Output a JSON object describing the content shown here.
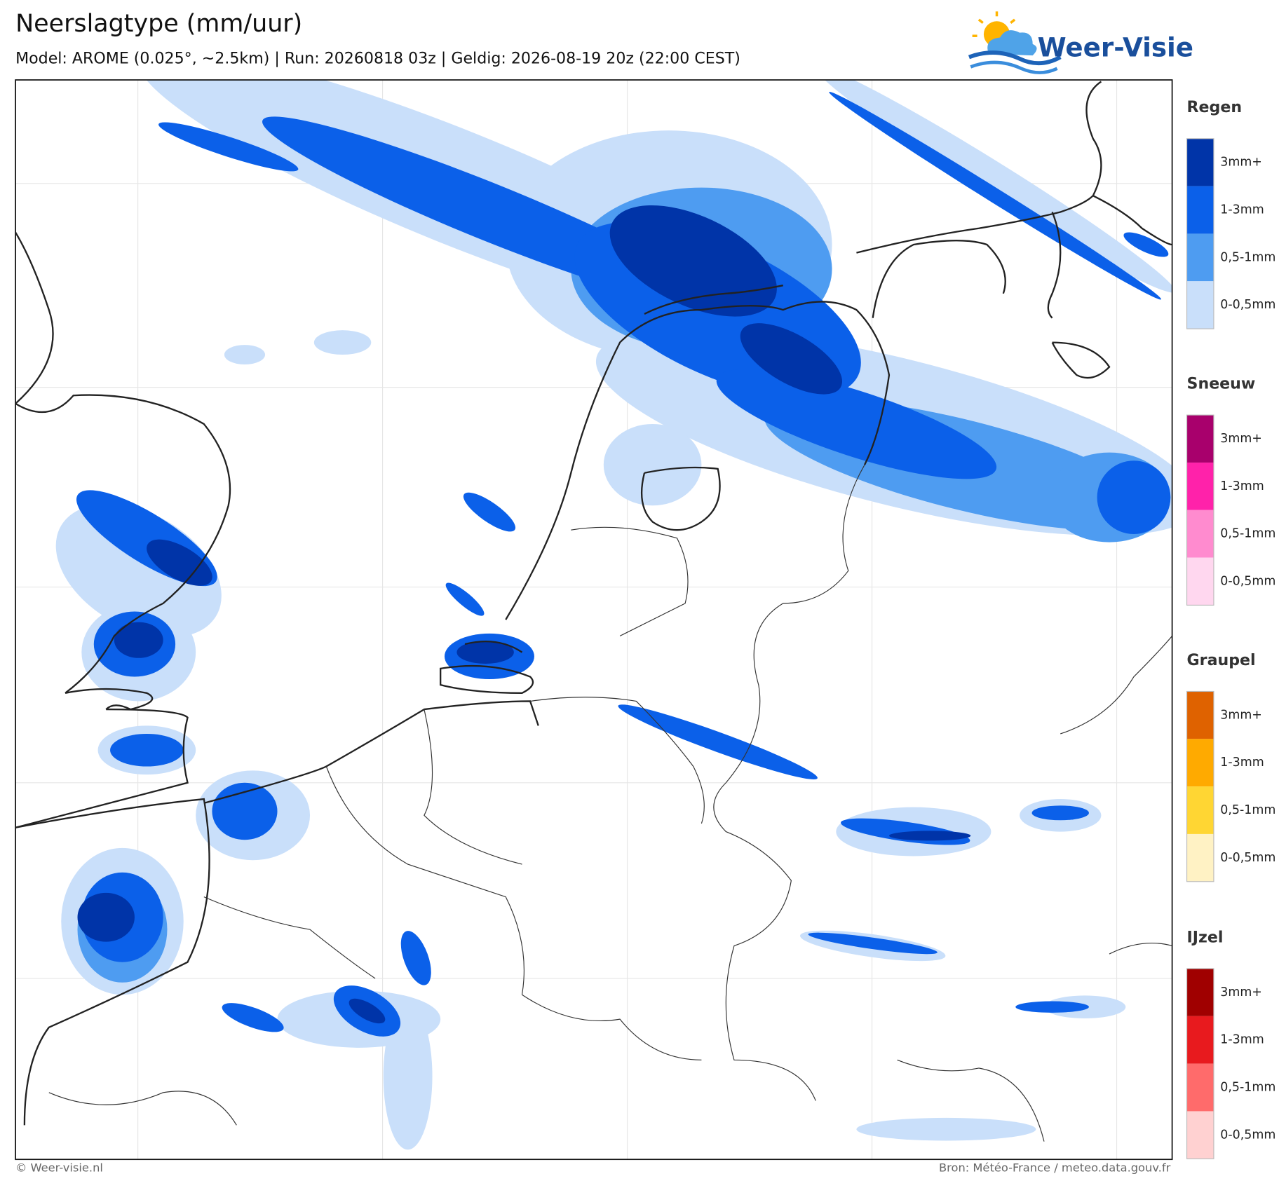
{
  "header": {
    "title": "Neerslagtype (mm/uur)",
    "subtitle": "Model: AROME (0.025°, ~2.5km)  |  Run: 20260818 03z  |  Geldig: 2026-08-19 20z (22:00 CEST)"
  },
  "logo": {
    "text": "Weer-Visie"
  },
  "legend": [
    {
      "title": "Regen",
      "items": [
        {
          "label": "3mm+",
          "color": "#0034a8"
        },
        {
          "label": "1-3mm",
          "color": "#0b60e9"
        },
        {
          "label": "0,5-1mm",
          "color": "#4e9cf1"
        },
        {
          "label": "0-0,5mm",
          "color": "#c9dffa"
        }
      ]
    },
    {
      "title": "Sneeuw",
      "items": [
        {
          "label": "3mm+",
          "color": "#a8006c"
        },
        {
          "label": "1-3mm",
          "color": "#ff22aa"
        },
        {
          "label": "0,5-1mm",
          "color": "#ff8bcf"
        },
        {
          "label": "0-0,5mm",
          "color": "#ffd7ef"
        }
      ]
    },
    {
      "title": "Graupel",
      "items": [
        {
          "label": "3mm+",
          "color": "#df6200"
        },
        {
          "label": "1-3mm",
          "color": "#ffaa00"
        },
        {
          "label": "0,5-1mm",
          "color": "#ffd633"
        },
        {
          "label": "0-0,5mm",
          "color": "#fff2c4"
        }
      ]
    },
    {
      "title": "IJzel",
      "items": [
        {
          "label": "3mm+",
          "color": "#a00000"
        },
        {
          "label": "1-3mm",
          "color": "#e81a1e"
        },
        {
          "label": "0,5-1mm",
          "color": "#ff6b6b"
        },
        {
          "label": "0-0,5mm",
          "color": "#ffd1d1"
        }
      ]
    }
  ],
  "footer": {
    "left": "© Weer-visie.nl",
    "right": "Bron: Météo-France / meteo.data.gouv.fr"
  }
}
